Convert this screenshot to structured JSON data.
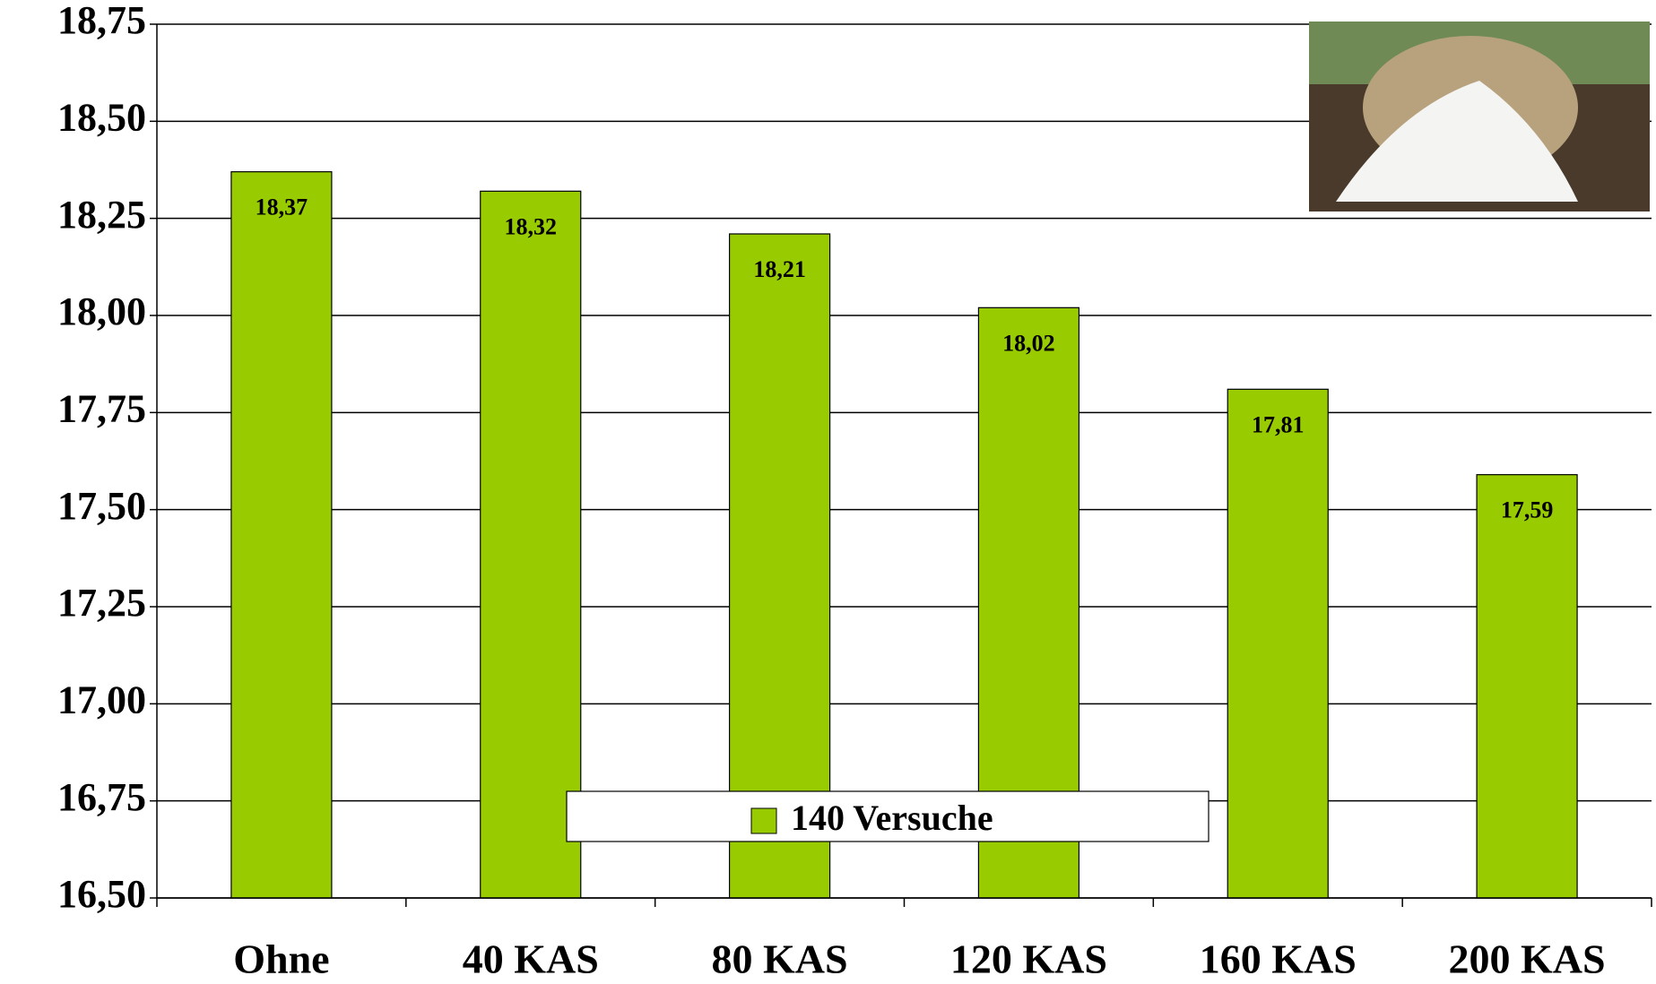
{
  "chart_data": {
    "type": "bar",
    "categories": [
      "Ohne",
      "40 KAS",
      "80 KAS",
      "120 KAS",
      "160 KAS",
      "200 KAS"
    ],
    "series": [
      {
        "name": "140 Versuche",
        "color": "#99cc00",
        "values": [
          18.37,
          18.32,
          18.21,
          18.02,
          17.81,
          17.59
        ],
        "value_labels": [
          "18,37",
          "18,32",
          "18,21",
          "18,02",
          "17,81",
          "17,59"
        ]
      }
    ],
    "ylim": [
      16.5,
      18.75
    ],
    "yticks": [
      {
        "value": 16.5,
        "label": "16,50"
      },
      {
        "value": 16.75,
        "label": "16,75"
      },
      {
        "value": 17,
        "label": "17,00"
      },
      {
        "value": 17.25,
        "label": "17,25"
      },
      {
        "value": 17.5,
        "label": "17,50"
      },
      {
        "value": 17.75,
        "label": "17,75"
      },
      {
        "value": 18,
        "label": "18,00"
      },
      {
        "value": 18.25,
        "label": "18,25"
      },
      {
        "value": 18.5,
        "label": "18,50"
      },
      {
        "value": 18.75,
        "label": "18,75"
      }
    ],
    "grid": true
  }
}
